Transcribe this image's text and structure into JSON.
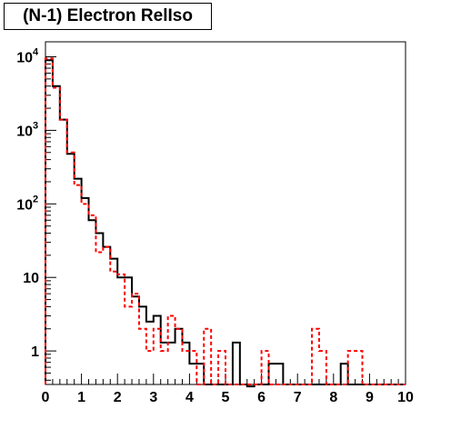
{
  "chart_data": {
    "type": "histogram",
    "title": "(N-1) Electron RelIso",
    "xlabel": "",
    "ylabel": "",
    "xlim": [
      0,
      10
    ],
    "ylim": [
      0.35,
      16000
    ],
    "y_scale": "log",
    "bin_width": 0.2,
    "x_ticks": [
      "0",
      "1",
      "2",
      "3",
      "4",
      "5",
      "6",
      "7",
      "8",
      "9",
      "10"
    ],
    "y_ticks": [
      {
        "value": 1,
        "base": "1",
        "exp": ""
      },
      {
        "value": 10,
        "base": "10",
        "exp": ""
      },
      {
        "value": 100,
        "base": "10",
        "exp": "2"
      },
      {
        "value": 1000,
        "base": "10",
        "exp": "3"
      },
      {
        "value": 10000,
        "base": "10",
        "exp": "4"
      }
    ],
    "grid": false,
    "legend": "none",
    "series": [
      {
        "color": "#000000",
        "style": "solid",
        "bin_edges_start": 0,
        "values": [
          9000,
          4000,
          1400,
          480,
          220,
          120,
          60,
          40,
          26,
          18,
          10,
          10,
          5.5,
          4,
          2.5,
          3,
          1.3,
          1.3,
          2,
          1.3,
          0.67,
          0.67,
          0,
          0,
          0,
          0,
          1.3,
          0,
          0.33,
          0,
          0,
          0.67,
          0.67,
          0,
          0,
          0,
          0,
          0,
          0,
          0,
          0,
          0.67,
          0,
          0,
          0,
          0,
          0,
          0,
          0,
          0
        ]
      },
      {
        "color": "#ff0000",
        "style": "dashed",
        "bin_edges_start": 0,
        "values": [
          9500,
          3800,
          1400,
          500,
          180,
          100,
          70,
          22,
          26,
          12,
          11,
          4,
          6,
          2,
          1,
          2,
          1,
          3,
          2,
          1,
          1,
          0,
          2,
          0,
          1,
          0,
          0,
          0,
          0,
          0,
          1,
          0,
          0,
          0,
          0,
          0,
          0,
          2,
          1,
          0,
          0,
          0,
          1,
          1,
          0,
          0,
          0,
          0,
          0,
          0
        ]
      }
    ]
  }
}
